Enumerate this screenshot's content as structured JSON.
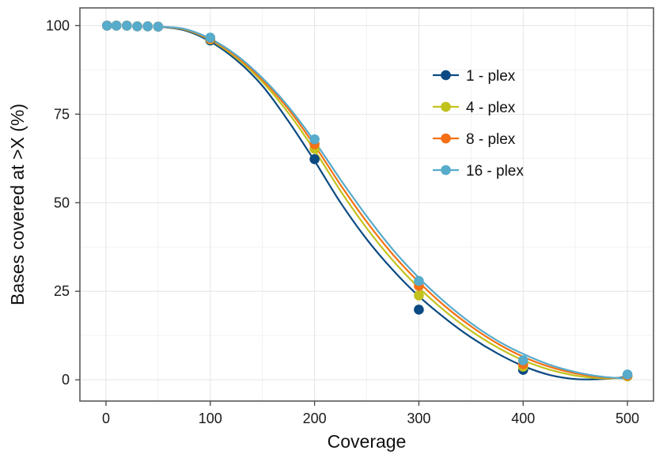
{
  "chart_data": {
    "type": "scatter",
    "xlabel": "Coverage",
    "ylabel": "Bases covered at >X (%)",
    "xlim": [
      -25,
      525
    ],
    "ylim": [
      -6,
      105
    ],
    "x_ticks": [
      0,
      100,
      200,
      300,
      400,
      500
    ],
    "y_ticks": [
      0,
      25,
      50,
      75,
      100
    ],
    "grid": true,
    "legend_position": "top-right",
    "x": [
      1,
      10,
      20,
      30,
      40,
      50,
      100,
      200,
      300,
      400,
      500
    ],
    "series": [
      {
        "name": "1 - plex",
        "color": "#0b4a82",
        "values": [
          100,
          100,
          100,
          99.8,
          99.8,
          99.7,
          95.8,
          62.3,
          19.8,
          2.8,
          1.0
        ],
        "fit": [
          [
            50,
            99.7
          ],
          [
            75,
            98.7
          ],
          [
            100,
            95.5
          ],
          [
            125,
            90.3
          ],
          [
            150,
            83.0
          ],
          [
            175,
            73.0
          ],
          [
            200,
            61.8
          ],
          [
            225,
            50.0
          ],
          [
            250,
            39.7
          ],
          [
            275,
            31.0
          ],
          [
            300,
            23.6
          ],
          [
            325,
            17.4
          ],
          [
            350,
            12.0
          ],
          [
            375,
            7.5
          ],
          [
            400,
            3.9
          ],
          [
            425,
            1.4
          ],
          [
            450,
            0.2
          ],
          [
            475,
            0.2
          ],
          [
            500,
            0.8
          ]
        ]
      },
      {
        "name": "4 - plex",
        "color": "#c2c21c",
        "values": [
          100,
          100,
          100,
          99.8,
          99.8,
          99.7,
          96.1,
          65.2,
          23.8,
          3.7,
          1.0
        ],
        "fit": [
          [
            50,
            99.7
          ],
          [
            75,
            98.9
          ],
          [
            100,
            95.9
          ],
          [
            125,
            90.9
          ],
          [
            150,
            84.1
          ],
          [
            175,
            75.3
          ],
          [
            200,
            64.8
          ],
          [
            225,
            53.3
          ],
          [
            250,
            42.8
          ],
          [
            275,
            33.7
          ],
          [
            300,
            26.0
          ],
          [
            325,
            19.4
          ],
          [
            350,
            13.8
          ],
          [
            375,
            9.2
          ],
          [
            400,
            5.5
          ],
          [
            425,
            2.9
          ],
          [
            450,
            1.2
          ],
          [
            475,
            0.4
          ],
          [
            500,
            0.5
          ]
        ]
      },
      {
        "name": "8 - plex",
        "color": "#f57014",
        "values": [
          100,
          100,
          100,
          99.8,
          99.8,
          99.7,
          96.3,
          66.5,
          26.5,
          4.4,
          1.2
        ],
        "fit": [
          [
            50,
            99.7
          ],
          [
            75,
            99.0
          ],
          [
            100,
            96.1
          ],
          [
            125,
            91.3
          ],
          [
            150,
            84.7
          ],
          [
            175,
            76.4
          ],
          [
            200,
            66.2
          ],
          [
            225,
            55.0
          ],
          [
            250,
            44.6
          ],
          [
            275,
            35.4
          ],
          [
            300,
            27.6
          ],
          [
            325,
            20.8
          ],
          [
            350,
            15.1
          ],
          [
            375,
            10.3
          ],
          [
            400,
            6.5
          ],
          [
            425,
            3.7
          ],
          [
            450,
            1.8
          ],
          [
            475,
            0.7
          ],
          [
            500,
            0.4
          ]
        ]
      },
      {
        "name": "16 - plex",
        "color": "#57abcb",
        "values": [
          100,
          100,
          100,
          99.8,
          99.8,
          99.7,
          96.6,
          67.9,
          27.9,
          5.5,
          1.5
        ],
        "fit": [
          [
            50,
            99.7
          ],
          [
            75,
            99.1
          ],
          [
            100,
            96.3
          ],
          [
            125,
            91.7
          ],
          [
            150,
            85.2
          ],
          [
            175,
            77.1
          ],
          [
            200,
            67.3
          ],
          [
            225,
            56.5
          ],
          [
            250,
            46.2
          ],
          [
            275,
            36.8
          ],
          [
            300,
            28.8
          ],
          [
            325,
            21.9
          ],
          [
            350,
            16.0
          ],
          [
            375,
            11.1
          ],
          [
            400,
            7.3
          ],
          [
            425,
            4.3
          ],
          [
            450,
            2.2
          ],
          [
            475,
            0.9
          ],
          [
            500,
            0.3
          ]
        ]
      }
    ]
  }
}
